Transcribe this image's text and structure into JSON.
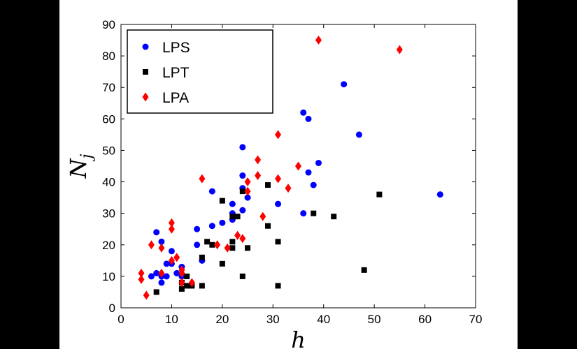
{
  "chart_data": {
    "type": "scatter",
    "title": "",
    "xlabel": "h",
    "ylabel": "N",
    "ylabel_subscript": "j",
    "xlim": [
      0,
      70
    ],
    "ylim": [
      0,
      90
    ],
    "xticks": [
      0,
      10,
      20,
      30,
      40,
      50,
      60,
      70
    ],
    "yticks": [
      0,
      10,
      20,
      30,
      40,
      50,
      60,
      70,
      80,
      90
    ],
    "grid": false,
    "legend_position": "top-left",
    "series": [
      {
        "name": "LPS",
        "color": "#0000ff",
        "marker": "circle",
        "points": [
          [
            6,
            10
          ],
          [
            7,
            11
          ],
          [
            7,
            24
          ],
          [
            8,
            8
          ],
          [
            8,
            10
          ],
          [
            8,
            21
          ],
          [
            9,
            10
          ],
          [
            9,
            14
          ],
          [
            10,
            14
          ],
          [
            10,
            18
          ],
          [
            11,
            11
          ],
          [
            12,
            10
          ],
          [
            12,
            13
          ],
          [
            15,
            20
          ],
          [
            15,
            25
          ],
          [
            16,
            15
          ],
          [
            18,
            26
          ],
          [
            18,
            37
          ],
          [
            20,
            27
          ],
          [
            22,
            28
          ],
          [
            22,
            30
          ],
          [
            22,
            33
          ],
          [
            24,
            31
          ],
          [
            24,
            38
          ],
          [
            24,
            42
          ],
          [
            24,
            51
          ],
          [
            25,
            35
          ],
          [
            31,
            33
          ],
          [
            36,
            30
          ],
          [
            36,
            62
          ],
          [
            37,
            43
          ],
          [
            37,
            60
          ],
          [
            38,
            39
          ],
          [
            39,
            46
          ],
          [
            44,
            71
          ],
          [
            47,
            55
          ],
          [
            63,
            36
          ]
        ]
      },
      {
        "name": "LPT",
        "color": "#000000",
        "marker": "square",
        "points": [
          [
            7,
            5
          ],
          [
            12,
            6
          ],
          [
            12,
            8
          ],
          [
            13,
            10
          ],
          [
            13,
            7
          ],
          [
            14,
            7
          ],
          [
            16,
            7
          ],
          [
            16,
            16
          ],
          [
            17,
            21
          ],
          [
            18,
            20
          ],
          [
            20,
            14
          ],
          [
            20,
            34
          ],
          [
            22,
            19
          ],
          [
            22,
            21
          ],
          [
            22,
            29
          ],
          [
            23,
            29
          ],
          [
            24,
            10
          ],
          [
            24,
            37
          ],
          [
            25,
            19
          ],
          [
            29,
            26
          ],
          [
            29,
            39
          ],
          [
            31,
            7
          ],
          [
            31,
            21
          ],
          [
            38,
            30
          ],
          [
            42,
            29
          ],
          [
            48,
            12
          ],
          [
            51,
            36
          ]
        ]
      },
      {
        "name": "LPA",
        "color": "#ff0000",
        "marker": "diamond",
        "points": [
          [
            4,
            9
          ],
          [
            4,
            11
          ],
          [
            5,
            4
          ],
          [
            6,
            20
          ],
          [
            8,
            11
          ],
          [
            8,
            19
          ],
          [
            10,
            15
          ],
          [
            10,
            25
          ],
          [
            10,
            27
          ],
          [
            11,
            16
          ],
          [
            12,
            8
          ],
          [
            12,
            11
          ],
          [
            12,
            12
          ],
          [
            14,
            8
          ],
          [
            16,
            41
          ],
          [
            19,
            20
          ],
          [
            21,
            19
          ],
          [
            23,
            23
          ],
          [
            24,
            22
          ],
          [
            25,
            37
          ],
          [
            25,
            40
          ],
          [
            27,
            42
          ],
          [
            27,
            47
          ],
          [
            28,
            29
          ],
          [
            31,
            41
          ],
          [
            31,
            55
          ],
          [
            33,
            38
          ],
          [
            35,
            45
          ],
          [
            39,
            85
          ],
          [
            55,
            82
          ]
        ]
      }
    ]
  }
}
